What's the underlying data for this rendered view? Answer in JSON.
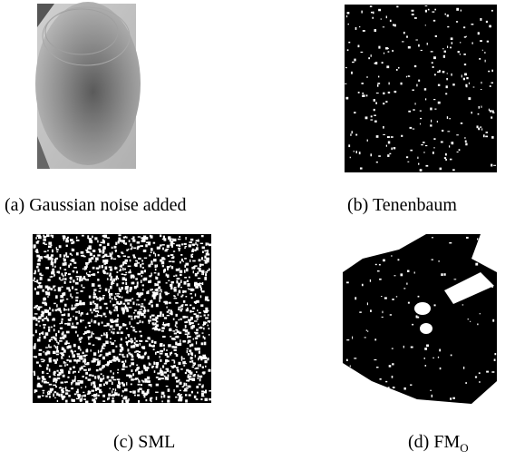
{
  "figure": {
    "panels": [
      {
        "caption": "(a) Gaussian noise added"
      },
      {
        "caption": "(b) Tenenbaum"
      },
      {
        "caption": "(c) SML"
      },
      {
        "caption": "(d) FM",
        "subscript": "O"
      }
    ]
  }
}
